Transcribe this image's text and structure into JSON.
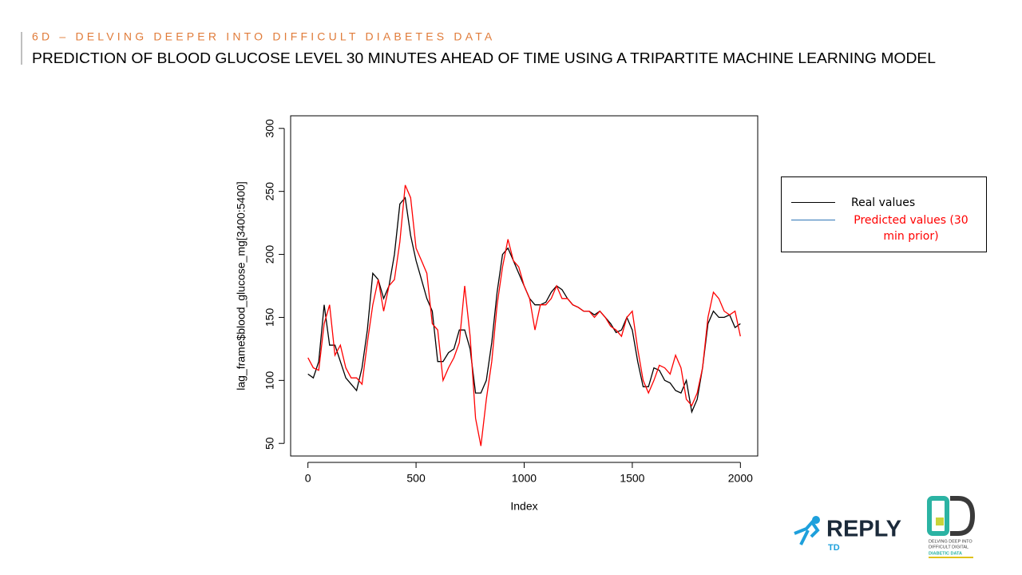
{
  "header": {
    "kicker": "6D – DELVING DEEPER INTO DIFFICULT DIABETES DATA",
    "title": "PREDICTION OF BLOOD GLUCOSE LEVEL 30 MINUTES AHEAD OF TIME USING A TRIPARTITE MACHINE LEARNING MODEL"
  },
  "chart_data": {
    "type": "line",
    "x_label": "Index",
    "y_label": "lag_frame$blood_glucose_mg[3400:5400]",
    "x": [
      0,
      25,
      50,
      75,
      100,
      125,
      150,
      175,
      200,
      225,
      250,
      275,
      300,
      325,
      350,
      375,
      400,
      425,
      450,
      475,
      500,
      525,
      550,
      575,
      600,
      625,
      650,
      675,
      700,
      725,
      750,
      775,
      800,
      825,
      850,
      875,
      900,
      925,
      950,
      975,
      1000,
      1025,
      1050,
      1075,
      1100,
      1125,
      1150,
      1175,
      1200,
      1225,
      1250,
      1275,
      1300,
      1325,
      1350,
      1375,
      1400,
      1425,
      1450,
      1475,
      1500,
      1525,
      1550,
      1575,
      1600,
      1625,
      1650,
      1675,
      1700,
      1725,
      1750,
      1775,
      1800,
      1825,
      1850,
      1875,
      1900,
      1925,
      1950,
      1975,
      2000
    ],
    "series": [
      {
        "name": "Real values",
        "color": "#000000",
        "legend_color": "#000000",
        "label_color": "#000000",
        "values": [
          105,
          102,
          115,
          160,
          128,
          128,
          115,
          102,
          97,
          92,
          110,
          140,
          185,
          180,
          165,
          175,
          200,
          240,
          245,
          215,
          195,
          180,
          165,
          155,
          115,
          115,
          122,
          125,
          140,
          140,
          125,
          90,
          90,
          100,
          130,
          170,
          200,
          205,
          195,
          185,
          175,
          165,
          160,
          160,
          162,
          170,
          175,
          172,
          165,
          160,
          158,
          155,
          155,
          152,
          155,
          150,
          145,
          138,
          140,
          150,
          140,
          115,
          95,
          95,
          110,
          108,
          100,
          98,
          92,
          90,
          100,
          75,
          85,
          110,
          145,
          155,
          150,
          150,
          152,
          142,
          145
        ]
      },
      {
        "name": "Predicted values (30 min prior)",
        "color": "#ff0000",
        "legend_color": "#2e75b6",
        "label_color": "#ff0000",
        "values": [
          118,
          110,
          108,
          145,
          160,
          120,
          128,
          110,
          102,
          102,
          97,
          130,
          160,
          180,
          155,
          175,
          180,
          210,
          255,
          245,
          205,
          195,
          185,
          145,
          140,
          100,
          110,
          118,
          130,
          175,
          135,
          70,
          48,
          85,
          115,
          160,
          190,
          212,
          195,
          190,
          175,
          165,
          140,
          160,
          160,
          165,
          175,
          165,
          165,
          160,
          158,
          155,
          155,
          150,
          155,
          150,
          143,
          140,
          135,
          150,
          155,
          125,
          100,
          90,
          100,
          112,
          110,
          105,
          120,
          110,
          85,
          80,
          90,
          110,
          150,
          170,
          165,
          155,
          152,
          155,
          135
        ]
      }
    ],
    "xlim": [
      -80,
      2080
    ],
    "ylim": [
      40,
      310
    ],
    "xticks": [
      0,
      500,
      1000,
      1500,
      2000
    ],
    "yticks": [
      50,
      100,
      150,
      200,
      250,
      300
    ],
    "grid": false,
    "legend": "right"
  },
  "logos": {
    "reply": {
      "name": "REPLY",
      "sub": "TD"
    },
    "sixd": {
      "mark": "6D",
      "line1": "DELVING DEEP INTO",
      "line2": "DIFFICULT DIGITAL",
      "line3": "DIABETIC DATA"
    }
  }
}
